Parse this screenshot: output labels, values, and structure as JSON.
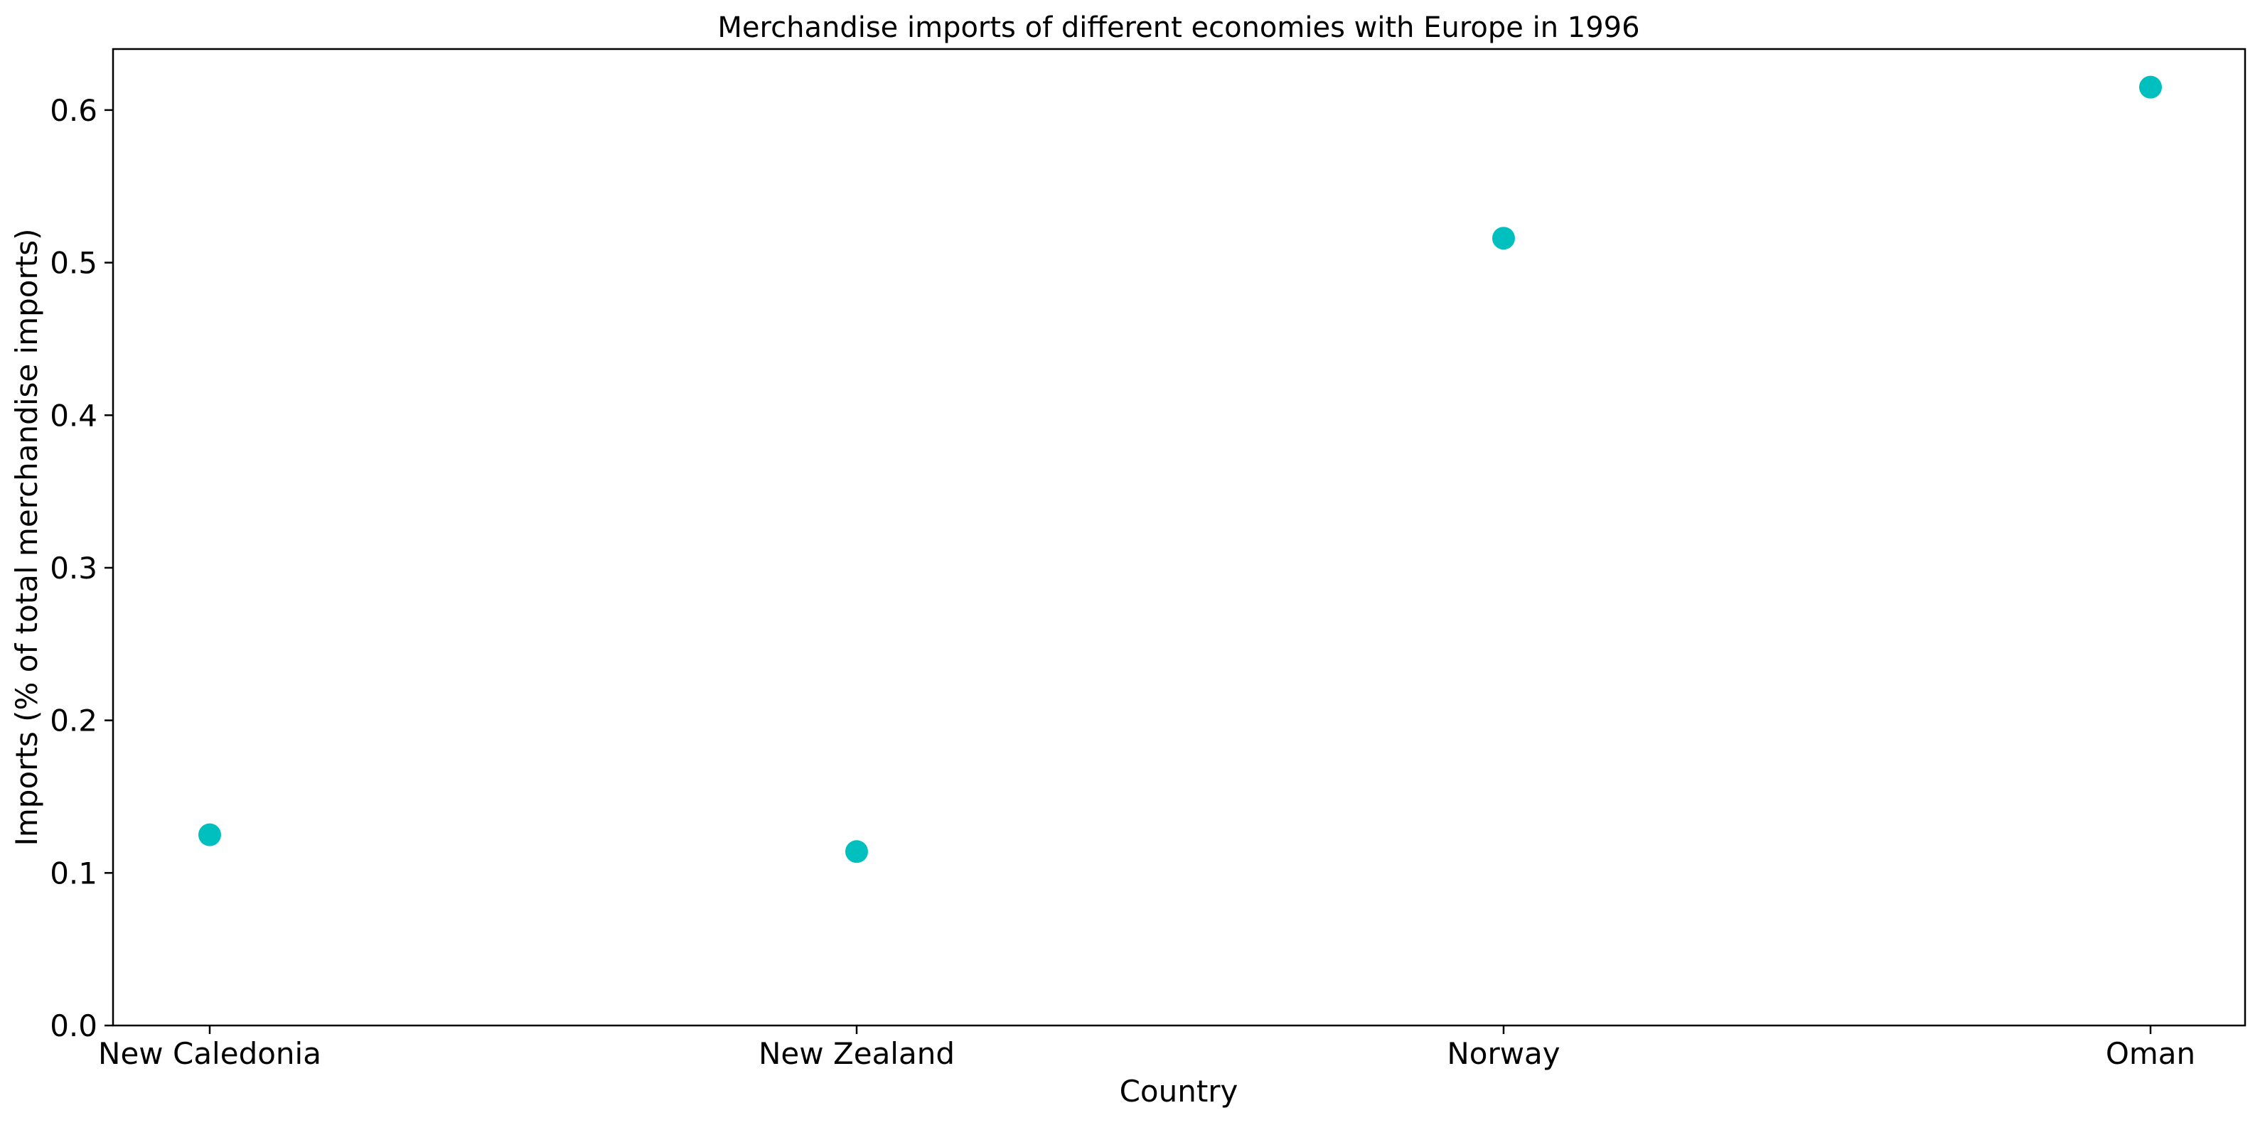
{
  "chart_data": {
    "type": "scatter",
    "title": "Merchandise imports of different economies with Europe in 1996",
    "xlabel": "Country",
    "ylabel": "Imports (% of total merchandise imports)",
    "categories": [
      "New Caledonia",
      "New Zealand",
      "Norway",
      "Oman"
    ],
    "values": [
      0.125,
      0.114,
      0.516,
      0.615
    ],
    "ylim": [
      0,
      0.64
    ],
    "yticks": [
      "0.0",
      "0.1",
      "0.2",
      "0.3",
      "0.4",
      "0.5",
      "0.6"
    ],
    "grid": false,
    "marker_color": "#00bfbf"
  }
}
